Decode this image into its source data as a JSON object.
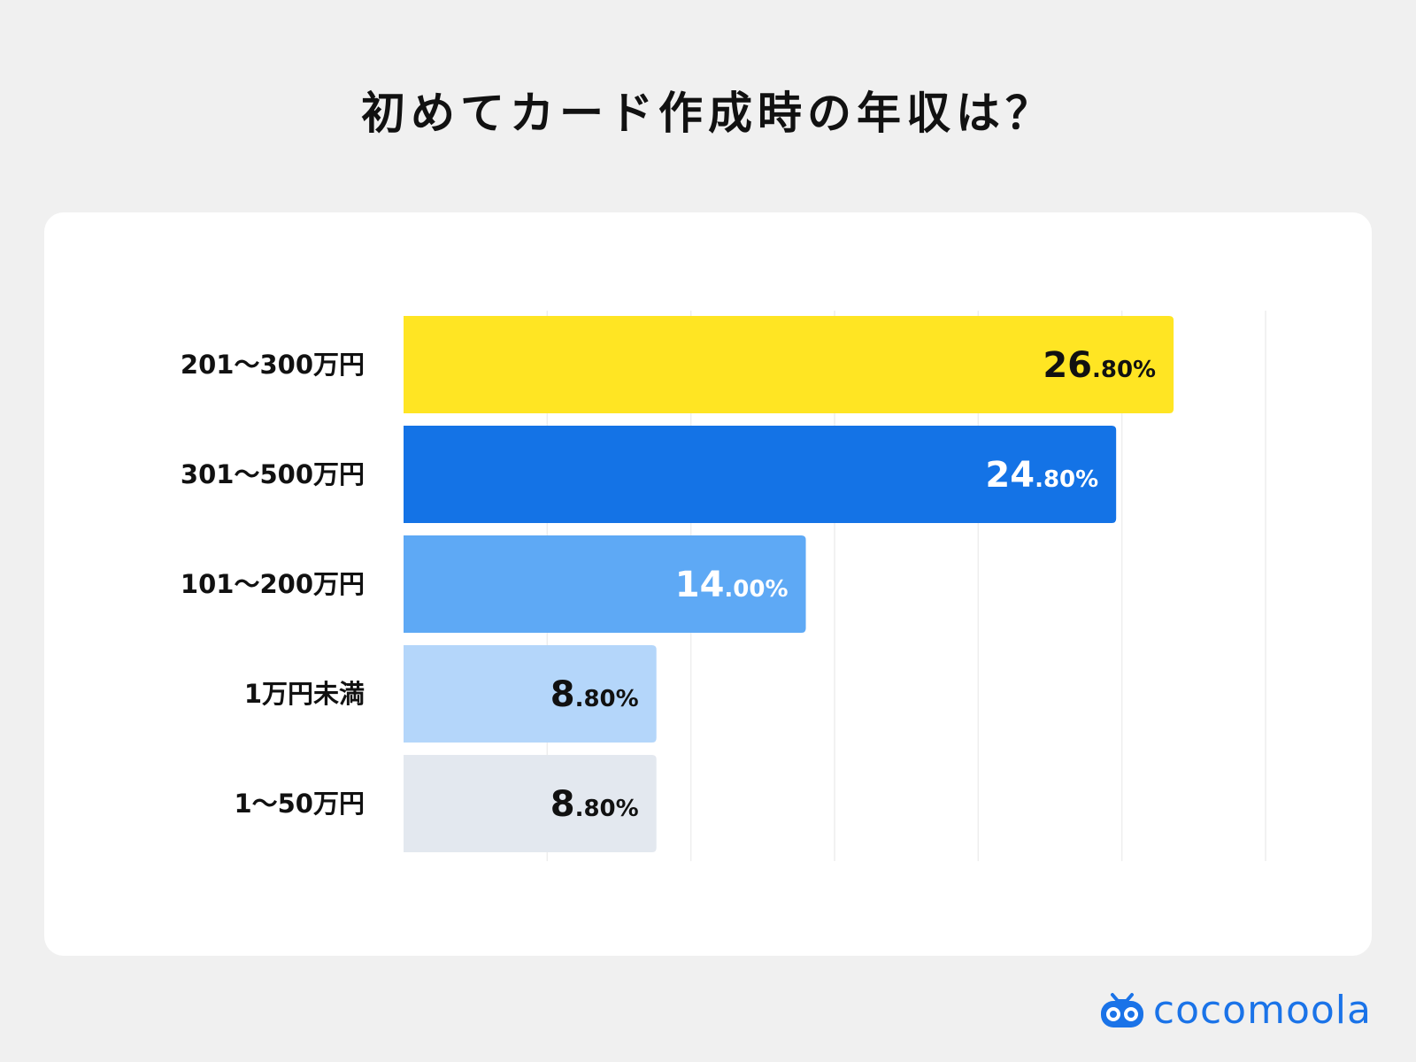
{
  "title": "初めてカード作成時の年収は？",
  "brand": "cocomoola",
  "colors": {
    "background": "#f0f0f0",
    "card": "#ffffff",
    "grid": "#eeeeee",
    "brand": "#1a73e8"
  },
  "chart_data": {
    "type": "bar",
    "orientation": "horizontal",
    "categories": [
      "201〜300万円",
      "301〜500万円",
      "101〜200万円",
      "1万円未満",
      "1〜50万円"
    ],
    "values": [
      26.8,
      24.8,
      14.0,
      8.8,
      8.8
    ],
    "value_labels": [
      {
        "int": "26",
        "frac": ".80%"
      },
      {
        "int": "24",
        "frac": ".80%"
      },
      {
        "int": "14",
        "frac": ".00%"
      },
      {
        "int": "8",
        "frac": ".80%"
      },
      {
        "int": "8",
        "frac": ".80%"
      }
    ],
    "bar_colors": [
      "#ffe523",
      "#1473e6",
      "#5ea9f5",
      "#b4d6fa",
      "#e3e8ef"
    ],
    "label_colors": [
      "#111111",
      "#ffffff",
      "#ffffff",
      "#111111",
      "#111111"
    ],
    "xlim": [
      0,
      30
    ],
    "grid": true,
    "xlabel": "",
    "ylabel": ""
  }
}
